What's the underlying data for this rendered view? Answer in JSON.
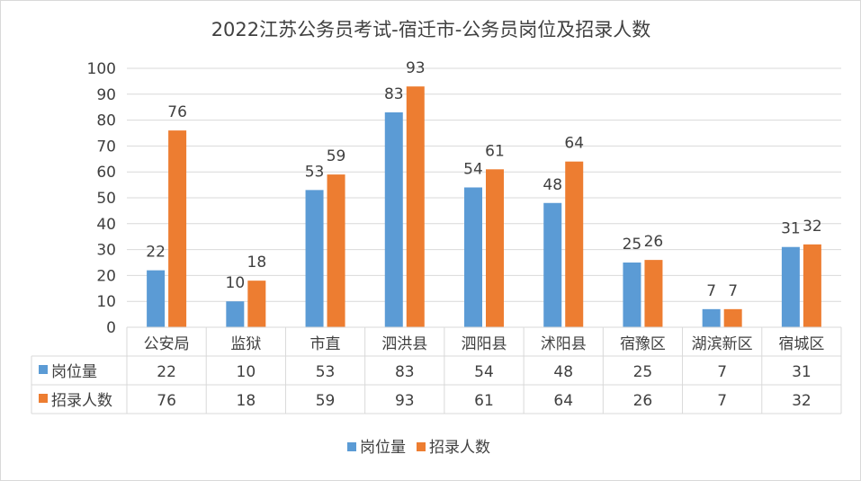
{
  "chart_data": {
    "type": "bar",
    "title": "2022江苏公务员考试-宿迁市-公务员岗位及招录人数",
    "categories": [
      "公安局",
      "监狱",
      "市直",
      "泗洪县",
      "泗阳县",
      "沭阳县",
      "宿豫区",
      "湖滨新区",
      "宿城区"
    ],
    "series": [
      {
        "name": "岗位量",
        "values": [
          22,
          10,
          53,
          83,
          54,
          48,
          25,
          7,
          31
        ],
        "color": "#5b9bd5"
      },
      {
        "name": "招录人数",
        "values": [
          76,
          18,
          59,
          93,
          61,
          64,
          26,
          7,
          32
        ],
        "color": "#ed7d31"
      }
    ],
    "ylim": [
      0,
      100
    ],
    "yticks": [
      0,
      10,
      20,
      30,
      40,
      50,
      60,
      70,
      80,
      90,
      100
    ],
    "grid": true,
    "legend": "bottom",
    "data_table": true,
    "data_labels": true
  }
}
